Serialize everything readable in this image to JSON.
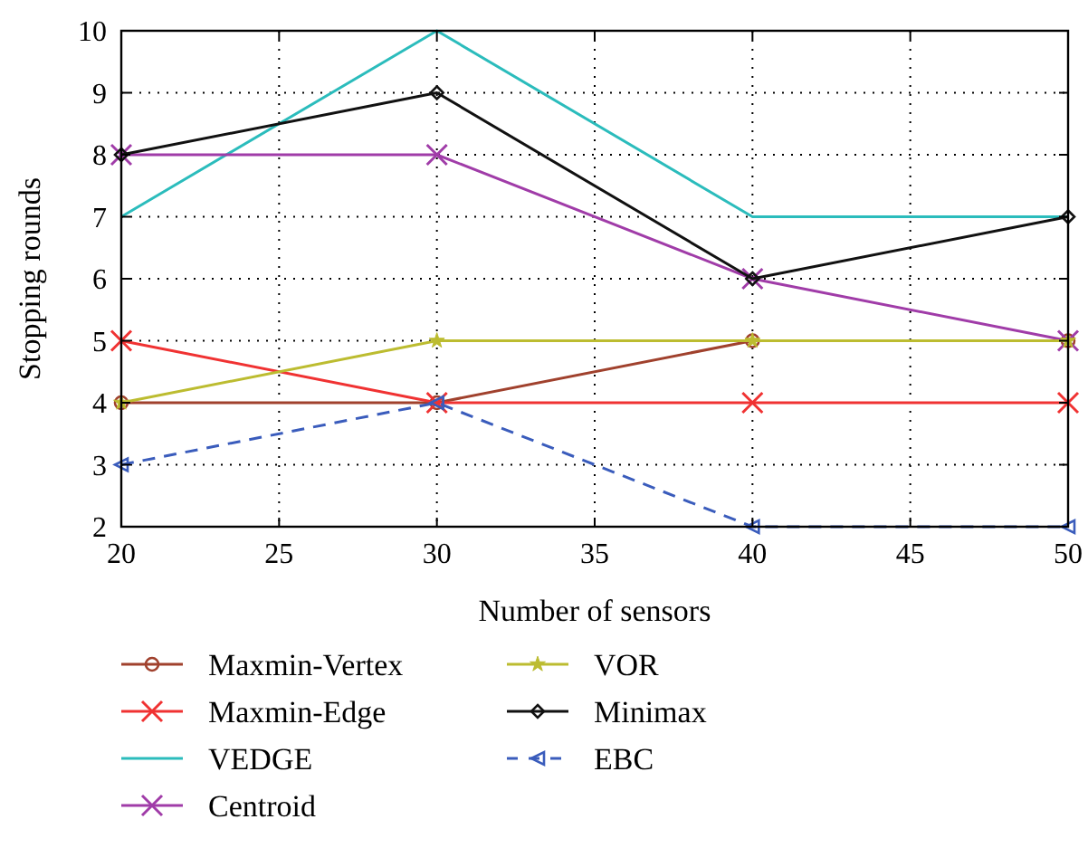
{
  "chart_data": {
    "type": "line",
    "xlabel": "Number of sensors",
    "ylabel": "Stopping rounds",
    "x": [
      20,
      30,
      40,
      50
    ],
    "xlim": [
      20,
      50
    ],
    "xticks": [
      20,
      25,
      30,
      35,
      40,
      45,
      50
    ],
    "ylim": [
      2,
      10
    ],
    "yticks": [
      2,
      3,
      4,
      5,
      6,
      7,
      8,
      9,
      10
    ],
    "grid": true,
    "legend": "bottom",
    "series": [
      {
        "name": "Maxmin-Vertex",
        "color": "#a0412d",
        "values": [
          4,
          4,
          5,
          5
        ],
        "marker": "circle"
      },
      {
        "name": "Maxmin-Edge",
        "color": "#f03232",
        "values": [
          5,
          4,
          4,
          4
        ],
        "marker": "cross"
      },
      {
        "name": "VEDGE",
        "color": "#2bbcbc",
        "values": [
          7,
          10,
          7,
          7
        ],
        "marker": "none"
      },
      {
        "name": "Centroid",
        "color": "#a03ca8",
        "values": [
          8,
          8,
          6,
          5
        ],
        "marker": "cross"
      },
      {
        "name": "VOR",
        "color": "#bcbc30",
        "values": [
          4,
          5,
          5,
          5
        ],
        "marker": "star"
      },
      {
        "name": "Minimax",
        "color": "#111111",
        "values": [
          8,
          9,
          6,
          7
        ],
        "marker": "diamond"
      },
      {
        "name": "EBC",
        "color": "#3a5cbc",
        "values": [
          3,
          4,
          2,
          2
        ],
        "marker": "triangle",
        "line_style": "dashed"
      }
    ]
  }
}
